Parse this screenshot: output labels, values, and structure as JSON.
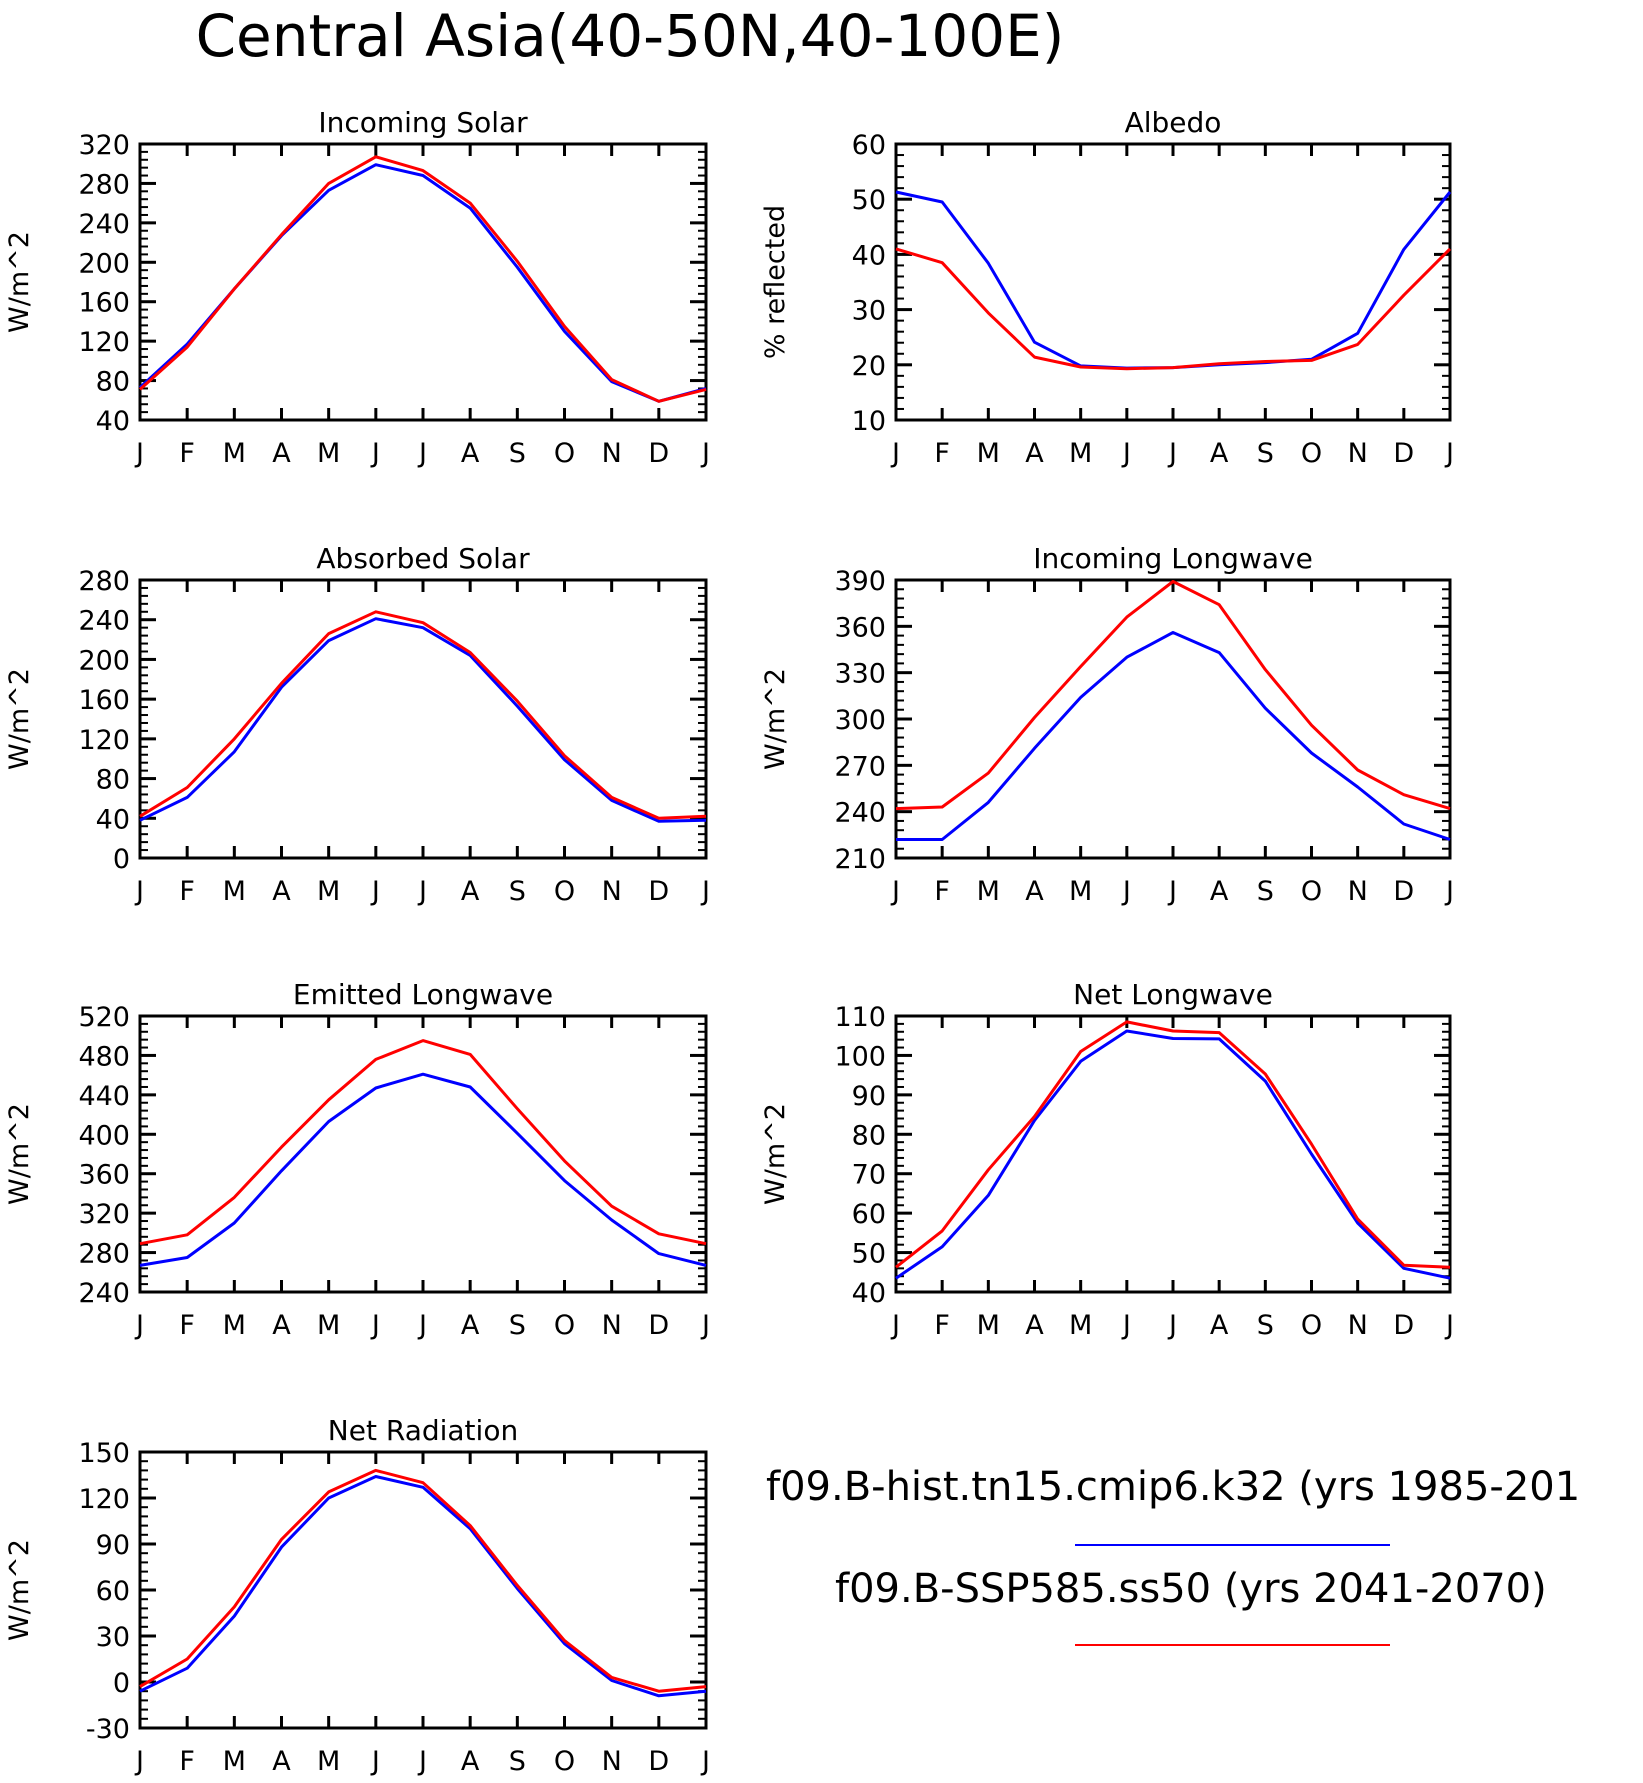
{
  "title": "Central Asia(40-50N,40-100E)",
  "colors": {
    "series_1": "#0000ff",
    "series_2": "#ff0000",
    "axis": "#000000"
  },
  "legend": [
    {
      "label": "f09.B-hist.tn15.cmip6.k32 (yrs 1985-201",
      "color": "#0000ff"
    },
    {
      "label": "f09.B-SSP585.ss50 (yrs 2041-2070)",
      "color": "#ff0000"
    }
  ],
  "chart_data": [
    {
      "type": "line",
      "title": "Incoming Solar",
      "ylabel": "W/m^2",
      "categories": [
        "J",
        "F",
        "M",
        "A",
        "M",
        "J",
        "J",
        "A",
        "S",
        "O",
        "N",
        "D",
        "J"
      ],
      "ylim": [
        40,
        320
      ],
      "yticks": [
        40,
        80,
        120,
        160,
        200,
        240,
        280,
        320
      ],
      "grid": false,
      "series": [
        {
          "color": "#0000ff",
          "values": [
            73,
            117,
            173,
            227,
            273,
            299,
            288,
            255,
            195,
            130,
            79,
            59,
            72
          ]
        },
        {
          "color": "#ff0000",
          "values": [
            71,
            114,
            173,
            228,
            280,
            307,
            293,
            260,
            201,
            135,
            81,
            59,
            71
          ]
        }
      ]
    },
    {
      "type": "line",
      "title": "Albedo",
      "ylabel": "% reflected",
      "categories": [
        "J",
        "F",
        "M",
        "A",
        "M",
        "J",
        "J",
        "A",
        "S",
        "O",
        "N",
        "D",
        "J"
      ],
      "ylim": [
        10,
        60
      ],
      "yticks": [
        10,
        20,
        30,
        40,
        50,
        60
      ],
      "grid": false,
      "series": [
        {
          "color": "#0000ff",
          "values": [
            51.3,
            49.5,
            38.4,
            24.1,
            19.8,
            19.4,
            19.5,
            20.0,
            20.4,
            21.0,
            25.7,
            40.9,
            51.3
          ]
        },
        {
          "color": "#ff0000",
          "values": [
            41.0,
            38.5,
            29.4,
            21.4,
            19.6,
            19.3,
            19.5,
            20.2,
            20.6,
            20.8,
            23.7,
            32.6,
            41.0
          ]
        }
      ]
    },
    {
      "type": "line",
      "title": "Absorbed Solar",
      "ylabel": "W/m^2",
      "categories": [
        "J",
        "F",
        "M",
        "A",
        "M",
        "J",
        "J",
        "A",
        "S",
        "O",
        "N",
        "D",
        "J"
      ],
      "ylim": [
        0,
        280
      ],
      "yticks": [
        0,
        40,
        80,
        120,
        160,
        200,
        240,
        280
      ],
      "grid": false,
      "series": [
        {
          "color": "#0000ff",
          "values": [
            38,
            61,
            107,
            172,
            219,
            241,
            232,
            204,
            153,
            99,
            58,
            37,
            38
          ]
        },
        {
          "color": "#ff0000",
          "values": [
            42,
            71,
            120,
            176,
            226,
            248,
            237,
            207,
            158,
            103,
            61,
            40,
            42
          ]
        }
      ]
    },
    {
      "type": "line",
      "title": "Incoming Longwave",
      "ylabel": "W/m^2",
      "categories": [
        "J",
        "F",
        "M",
        "A",
        "M",
        "J",
        "J",
        "A",
        "S",
        "O",
        "N",
        "D",
        "J"
      ],
      "ylim": [
        210,
        390
      ],
      "yticks": [
        210,
        240,
        270,
        300,
        330,
        360,
        390
      ],
      "grid": false,
      "series": [
        {
          "color": "#0000ff",
          "values": [
            222,
            222,
            246,
            281,
            314,
            340,
            356,
            343,
            307,
            278,
            256,
            232,
            222
          ]
        },
        {
          "color": "#ff0000",
          "values": [
            242,
            243,
            265,
            301,
            334,
            366,
            389,
            374,
            332,
            296,
            267,
            251,
            242
          ]
        }
      ]
    },
    {
      "type": "line",
      "title": "Emitted Longwave",
      "ylabel": "W/m^2",
      "categories": [
        "J",
        "F",
        "M",
        "A",
        "M",
        "J",
        "J",
        "A",
        "S",
        "O",
        "N",
        "D",
        "J"
      ],
      "ylim": [
        240,
        520
      ],
      "yticks": [
        240,
        280,
        320,
        360,
        400,
        440,
        480,
        520
      ],
      "grid": false,
      "series": [
        {
          "color": "#0000ff",
          "values": [
            267,
            275,
            310,
            363,
            413,
            447,
            461,
            448,
            401,
            353,
            313,
            279,
            267
          ]
        },
        {
          "color": "#ff0000",
          "values": [
            289,
            298,
            336,
            387,
            435,
            476,
            495,
            481,
            426,
            373,
            327,
            299,
            289
          ]
        }
      ]
    },
    {
      "type": "line",
      "title": "Net Longwave",
      "ylabel": "W/m^2",
      "categories": [
        "J",
        "F",
        "M",
        "A",
        "M",
        "J",
        "J",
        "A",
        "S",
        "O",
        "N",
        "D",
        "J"
      ],
      "ylim": [
        40,
        110
      ],
      "yticks": [
        40,
        50,
        60,
        70,
        80,
        90,
        100,
        110
      ],
      "grid": false,
      "series": [
        {
          "color": "#0000ff",
          "values": [
            43.5,
            51.5,
            64.5,
            83.5,
            98.5,
            106.2,
            104.3,
            104.2,
            93.5,
            75.0,
            57.5,
            46.0,
            43.5
          ]
        },
        {
          "color": "#ff0000",
          "values": [
            46.3,
            55.5,
            71.0,
            84.5,
            101.0,
            108.5,
            106.2,
            105.8,
            95.3,
            77.5,
            58.5,
            46.8,
            46.3
          ]
        }
      ]
    },
    {
      "type": "line",
      "title": "Net Radiation",
      "ylabel": "W/m^2",
      "categories": [
        "J",
        "F",
        "M",
        "A",
        "M",
        "J",
        "J",
        "A",
        "S",
        "O",
        "N",
        "D",
        "J"
      ],
      "ylim": [
        -30,
        150
      ],
      "yticks": [
        -30,
        0,
        30,
        60,
        90,
        120,
        150
      ],
      "grid": false,
      "series": [
        {
          "color": "#0000ff",
          "values": [
            -6,
            9,
            43,
            88,
            120,
            134,
            127,
            100,
            61,
            25,
            1,
            -9,
            -6
          ]
        },
        {
          "color": "#ff0000",
          "values": [
            -3,
            15,
            49,
            93,
            124,
            138,
            130,
            102,
            63,
            27,
            3,
            -6,
            -3
          ]
        }
      ]
    }
  ]
}
